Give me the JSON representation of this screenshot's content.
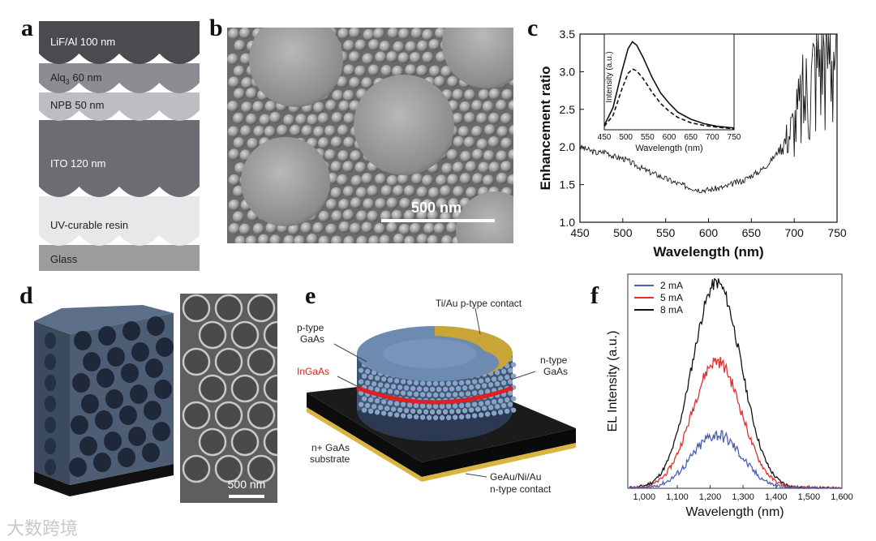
{
  "panels": {
    "a": {
      "label": "a",
      "layers": [
        {
          "name": "LiF/Al 100 nm",
          "color": "#4a4a4f"
        },
        {
          "name": "Alq3 60 nm",
          "color": "#8c8c92"
        },
        {
          "name": "NPB 50 nm",
          "color": "#bdbdc2"
        },
        {
          "name": "ITO 120 nm",
          "color": "#6c6c72"
        },
        {
          "name": "UV-curable resin",
          "color": "#e8e8ea"
        },
        {
          "name": "Glass",
          "color": "#9c9c9c"
        }
      ]
    },
    "b": {
      "label": "b",
      "scale_bar": "500 nm"
    },
    "c": {
      "label": "c"
    },
    "d": {
      "label": "d",
      "scale_bar": "500 nm"
    },
    "e": {
      "label": "e",
      "annotations": {
        "top_contact": "Ti/Au p-type contact",
        "p_type_1": "p-type",
        "p_type_2": "GaAs",
        "ingaas": "InGaAs",
        "n_type_1": "n-type",
        "n_type_2": "GaAs",
        "substrate_1": "n+ GaAs",
        "substrate_2": "substrate",
        "bottom_contact_1": "GeAu/Ni/Au",
        "bottom_contact_2": "n-type contact"
      }
    },
    "f": {
      "label": "f"
    }
  },
  "watermark": "大数跨境",
  "chart_data": [
    {
      "id": "c",
      "type": "line",
      "xlabel": "Wavelength (nm)",
      "ylabel": "Enhancement ratio",
      "xlim": [
        450,
        750
      ],
      "ylim": [
        1.0,
        3.5
      ],
      "xticks": [
        450,
        500,
        550,
        600,
        650,
        700,
        750
      ],
      "yticks": [
        "1.0",
        "1.5",
        "2.0",
        "2.5",
        "3.0",
        "3.5"
      ],
      "series": [
        {
          "x": [
            450,
            460,
            470,
            480,
            490,
            500,
            510,
            520,
            530,
            540,
            550,
            560,
            570,
            580,
            590,
            600,
            610,
            620,
            630,
            640,
            650,
            660,
            670,
            680,
            690,
            700,
            710,
            720,
            730,
            740,
            750
          ],
          "values": [
            2.0,
            1.96,
            1.92,
            1.94,
            1.87,
            1.85,
            1.79,
            1.73,
            1.67,
            1.63,
            1.58,
            1.53,
            1.49,
            1.46,
            1.43,
            1.43,
            1.45,
            1.47,
            1.52,
            1.55,
            1.62,
            1.68,
            1.78,
            1.92,
            2.1,
            2.3,
            2.6,
            2.9,
            3.3,
            3.5,
            3.5
          ],
          "color": "#1a1a1a"
        }
      ],
      "inset": {
        "xlabel": "Wavelength (nm)",
        "ylabel": "Intensity (a.u.)",
        "xlim": [
          450,
          750
        ],
        "xticks": [
          450,
          500,
          550,
          600,
          650,
          700,
          750
        ],
        "series": [
          {
            "style": "solid",
            "x": [
              450,
              470,
              490,
              505,
              515,
              525,
              540,
              560,
              580,
              600,
              620,
              650,
              680,
              710,
              750
            ],
            "values": [
              0.05,
              0.25,
              0.65,
              0.92,
              1.0,
              0.96,
              0.82,
              0.6,
              0.42,
              0.3,
              0.2,
              0.12,
              0.07,
              0.04,
              0.02
            ]
          },
          {
            "style": "dashed",
            "x": [
              450,
              470,
              490,
              505,
              515,
              525,
              540,
              560,
              580,
              600,
              620,
              650,
              680,
              710,
              750
            ],
            "values": [
              0.04,
              0.16,
              0.45,
              0.64,
              0.69,
              0.67,
              0.58,
              0.43,
              0.3,
              0.21,
              0.14,
              0.08,
              0.05,
              0.03,
              0.01
            ]
          }
        ]
      }
    },
    {
      "id": "f",
      "type": "line",
      "xlabel": "Wavelength (nm)",
      "ylabel": "EL Intensity (a.u.)",
      "xlim": [
        950,
        1600
      ],
      "xticks": [
        "1,000",
        "1,100",
        "1,200",
        "1,300",
        "1,400",
        "1,500",
        "1,600"
      ],
      "legend_position": "top-left",
      "series": [
        {
          "name": "2 mA",
          "color": "#4a5fb4",
          "peak": 0.26
        },
        {
          "name": "5 mA",
          "color": "#e03030",
          "peak": 0.62
        },
        {
          "name": "8 mA",
          "color": "#111111",
          "peak": 1.0
        }
      ]
    }
  ]
}
